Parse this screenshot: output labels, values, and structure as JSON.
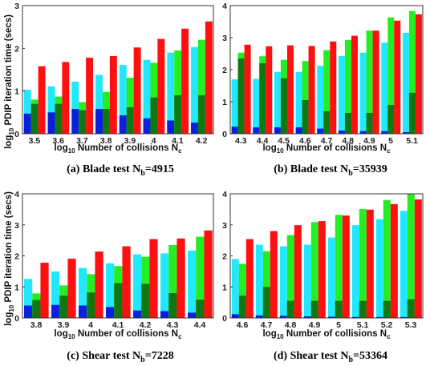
{
  "figure": {
    "ylabel_base": "log",
    "ylabel_sub": "10",
    "ylabel_rest": " PDIP iteration time (secs)",
    "xlabel_base": "log",
    "xlabel_sub": "10",
    "xlabel_rest": " Number of collisions N",
    "xlabel_tail": "c"
  },
  "colors": {
    "series_a_dark": "#0a1fe0",
    "series_a_light": "#22e8ff",
    "series_b_dark": "#117711",
    "series_b_light": "#22ee22",
    "series_c": "#ff1010"
  },
  "chart_data": [
    {
      "type": "bar",
      "caption_main": "(a) Blade test N",
      "caption_sub": "b",
      "caption_tail": "=4915",
      "categories": [
        "3.5",
        "3.6",
        "3.7",
        "3.8",
        "3.9",
        "4",
        "4.1",
        "4.2"
      ],
      "ylim": [
        0,
        3
      ],
      "yticks": [
        "0",
        "1",
        "2",
        "3"
      ],
      "series": [
        {
          "values_light": [
            1.03,
            1.11,
            1.22,
            1.38,
            1.61,
            1.73,
            1.9,
            2.03
          ],
          "values_dark": [
            0.47,
            0.5,
            0.58,
            0.58,
            0.43,
            0.36,
            0.31,
            0.26
          ]
        },
        {
          "values_light": [
            0.8,
            0.87,
            0.74,
            0.98,
            1.31,
            1.66,
            1.95,
            2.2
          ],
          "values_dark": [
            0.7,
            0.7,
            0.55,
            0.58,
            0.62,
            0.85,
            0.9,
            0.9
          ]
        },
        {
          "values": [
            1.58,
            1.68,
            1.78,
            1.82,
            2.02,
            2.22,
            2.46,
            2.63
          ]
        }
      ]
    },
    {
      "type": "bar",
      "caption_main": "(b) Blade test N",
      "caption_sub": "b",
      "caption_tail": "=35939",
      "categories": [
        "4.3",
        "4.4",
        "4.5",
        "4.6",
        "4.7",
        "4.8",
        "4.9",
        "5",
        "5.1"
      ],
      "ylim": [
        0,
        4
      ],
      "yticks": [
        "0",
        "1",
        "2",
        "3",
        "4"
      ],
      "series": [
        {
          "values_light": [
            1.7,
            1.71,
            1.93,
            1.93,
            2.12,
            2.43,
            2.53,
            2.84,
            3.15
          ],
          "values_dark": [
            0.22,
            0.2,
            0.2,
            0.2,
            0.16,
            0.1,
            0.08,
            0.08,
            0.05
          ]
        },
        {
          "values_light": [
            2.53,
            2.42,
            2.31,
            2.27,
            2.61,
            2.93,
            3.22,
            3.63,
            3.83
          ],
          "values_dark": [
            2.35,
            2.2,
            1.73,
            1.05,
            0.7,
            0.65,
            0.65,
            0.9,
            1.28
          ]
        },
        {
          "values": [
            2.78,
            2.73,
            2.76,
            2.74,
            2.88,
            3.06,
            3.22,
            3.53,
            3.73
          ]
        }
      ]
    },
    {
      "type": "bar",
      "caption_main": "(c) Shear test N",
      "caption_sub": "b",
      "caption_tail": "=7228",
      "categories": [
        "3.8",
        "3.9",
        "4",
        "4.1",
        "4.2",
        "4.3",
        "4.4"
      ],
      "ylim": [
        0,
        4
      ],
      "yticks": [
        "0",
        "1",
        "2",
        "3",
        "4"
      ],
      "series": [
        {
          "values_light": [
            1.26,
            1.5,
            1.61,
            1.76,
            2.05,
            2.08,
            2.17
          ],
          "values_dark": [
            0.4,
            0.42,
            0.4,
            0.35,
            0.24,
            0.22,
            0.17
          ]
        },
        {
          "values_light": [
            0.79,
            1.05,
            1.41,
            1.67,
            1.97,
            2.35,
            2.62
          ],
          "values_dark": [
            0.58,
            0.72,
            0.82,
            1.12,
            1.1,
            0.8,
            0.59
          ]
        },
        {
          "values": [
            1.78,
            1.91,
            2.14,
            2.31,
            2.54,
            2.56,
            2.82
          ]
        }
      ]
    },
    {
      "type": "bar",
      "caption_main": "(d) Shear test N",
      "caption_sub": "b",
      "caption_tail": "=53364",
      "categories": [
        "4.6",
        "4.7",
        "4.8",
        "4.9",
        "5",
        "5.1",
        "5.2",
        "5.3"
      ],
      "ylim": [
        0,
        4
      ],
      "yticks": [
        "0",
        "1",
        "2",
        "3",
        "4"
      ],
      "series": [
        {
          "values_light": [
            1.9,
            2.36,
            2.31,
            2.36,
            2.59,
            2.99,
            3.18,
            3.45
          ],
          "values_dark": [
            0.12,
            0.08,
            0.07,
            0.05,
            0.04,
            0.03,
            0.03,
            0.03
          ]
        },
        {
          "values_light": [
            1.74,
            2.15,
            2.67,
            3.09,
            3.32,
            3.51,
            3.8,
            4.0
          ],
          "values_dark": [
            0.72,
            1.0,
            0.55,
            0.55,
            0.55,
            0.55,
            0.55,
            0.6
          ]
        },
        {
          "values": [
            2.54,
            2.8,
            2.99,
            3.12,
            3.3,
            3.49,
            3.67,
            3.82
          ]
        }
      ]
    }
  ]
}
